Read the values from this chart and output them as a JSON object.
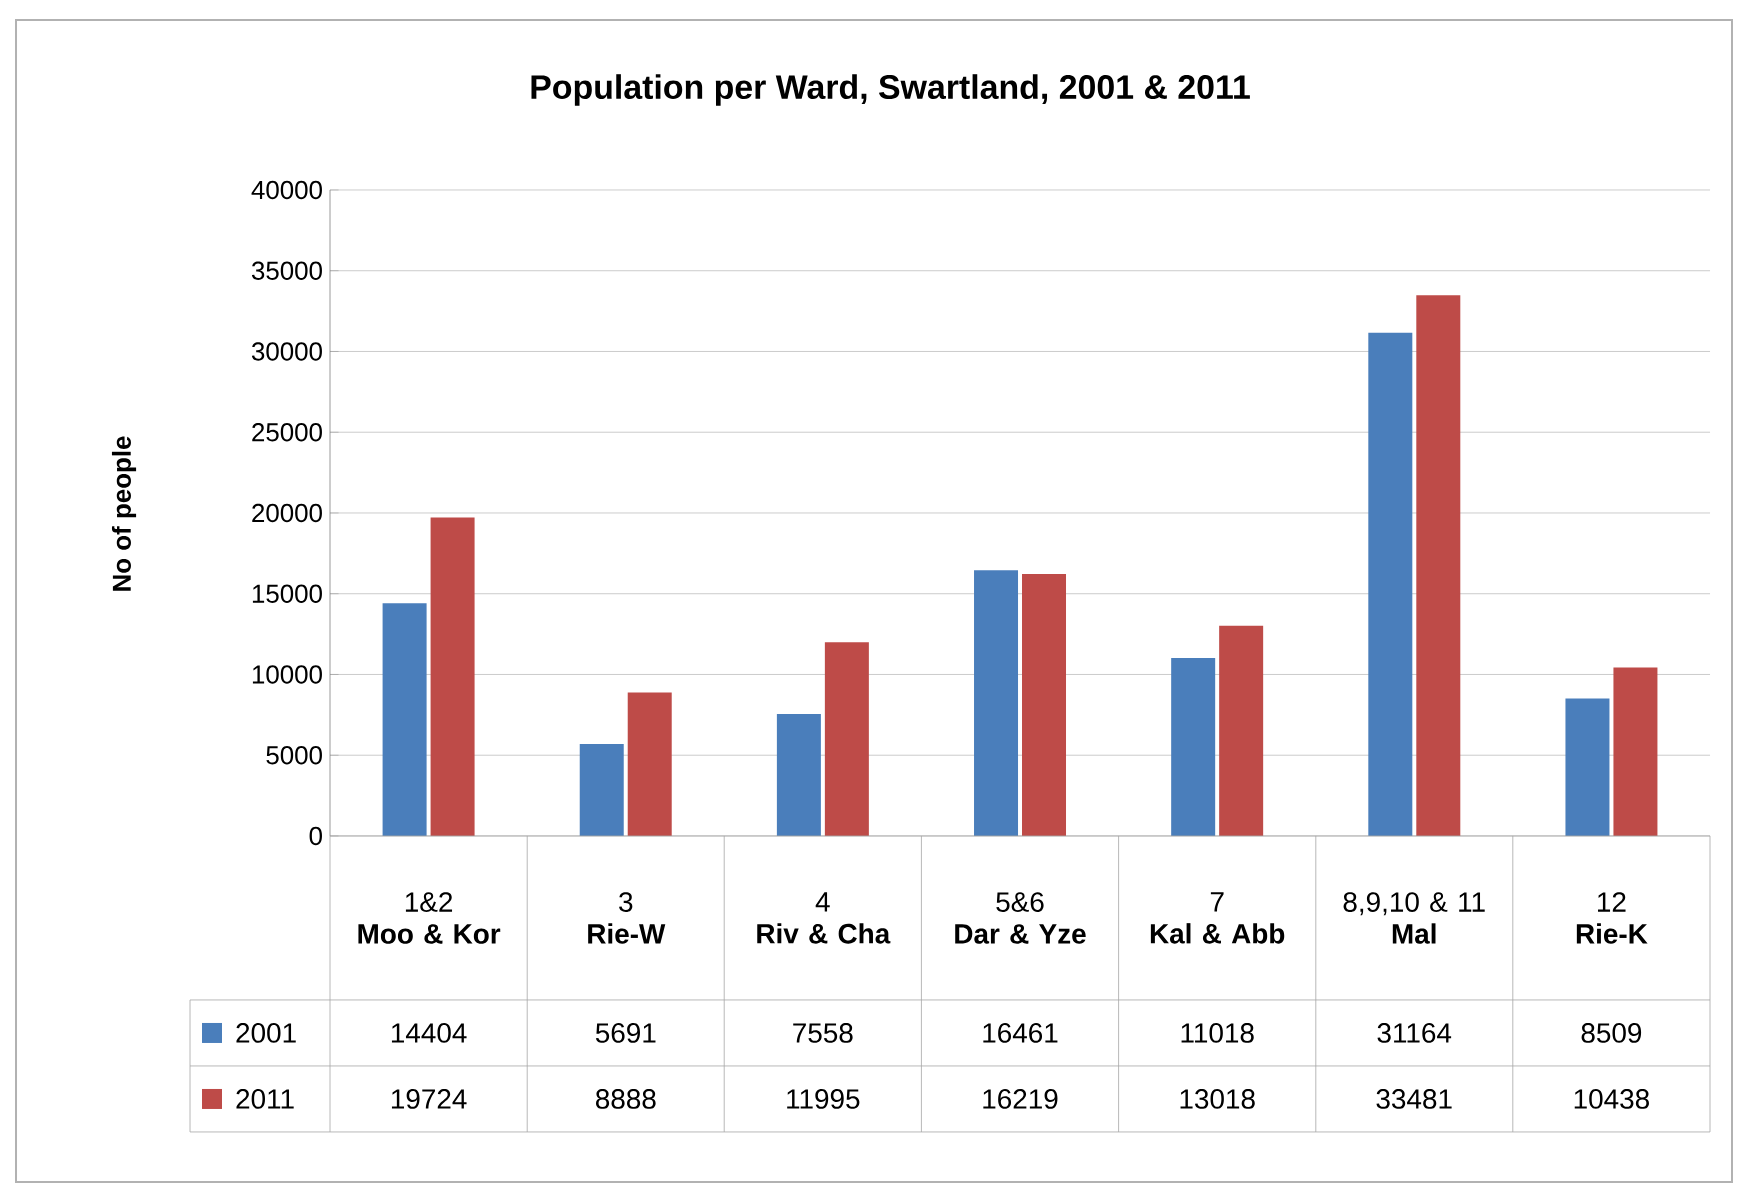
{
  "chart_data": {
    "type": "bar",
    "title": "Population per Ward, Swartland, 2001 & 2011",
    "ylabel": "No of people",
    "categories": [
      "1&2 **Moo & Kor**",
      "3 **Rie-W**",
      "4 **Riv & Cha**",
      "5&6 **Dar & Yze**",
      "7 **Kal & Abb**",
      "8,9,10 & 11 **Mal**",
      "12 **Rie-K**"
    ],
    "series": [
      {
        "name": "2001",
        "color": "#4a7ebb",
        "values": [
          14404,
          5691,
          7558,
          16461,
          11018,
          31164,
          8509
        ]
      },
      {
        "name": "2011",
        "color": "#be4b48",
        "values": [
          19724,
          8888,
          11995,
          16219,
          13018,
          33481,
          10438
        ]
      }
    ],
    "ylim": [
      0,
      40000
    ],
    "yticks": [
      0,
      5000,
      10000,
      15000,
      20000,
      25000,
      30000,
      35000,
      40000
    ],
    "grid": "y",
    "legend": "bottom",
    "data_labels": true
  }
}
